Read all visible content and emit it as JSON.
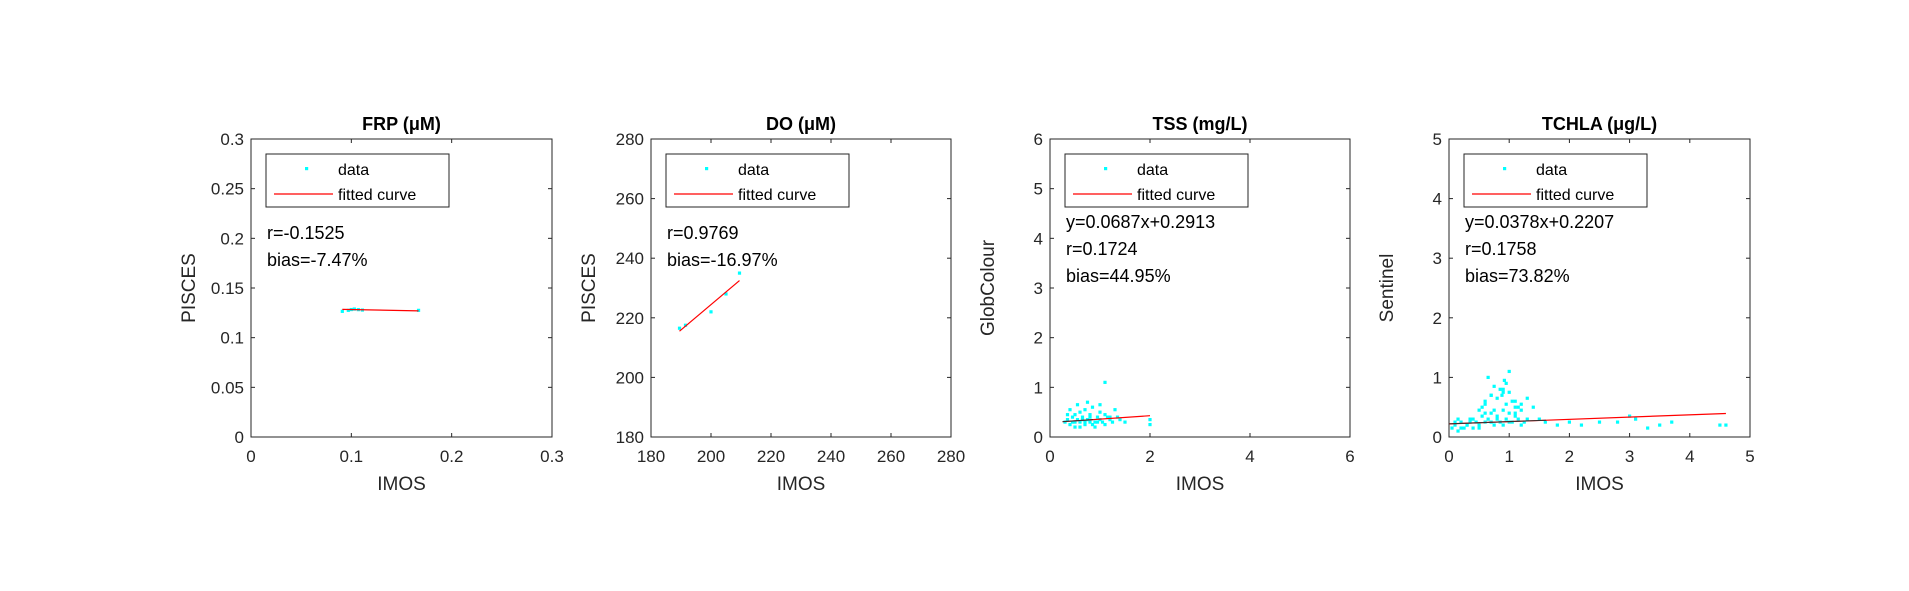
{
  "chart_data": [
    {
      "type": "scatter",
      "title": "FRP (μM)",
      "xlabel": "IMOS",
      "ylabel": "PISCES",
      "xlim": [
        0,
        0.3
      ],
      "ylim": [
        0,
        0.3
      ],
      "xticks": [
        0,
        0.1,
        0.2,
        0.3
      ],
      "xtick_labels": [
        "0",
        "0.1",
        "0.2",
        "0.3"
      ],
      "yticks": [
        0,
        0.05,
        0.1,
        0.15,
        0.2,
        0.25,
        0.3
      ],
      "ytick_labels": [
        "0",
        "0.05",
        "0.1",
        "0.15",
        "0.2",
        "0.25",
        "0.3"
      ],
      "legend": {
        "position": "top-left",
        "entries": [
          "data",
          "fitted curve"
        ]
      },
      "annotations": [
        "r=-0.1525",
        "bias=-7.47%"
      ],
      "series": [
        {
          "name": "data",
          "color": "#00ffff",
          "x": [
            0.091,
            0.097,
            0.1,
            0.103,
            0.107,
            0.111,
            0.167
          ],
          "y": [
            0.1265,
            0.1275,
            0.1283,
            0.1288,
            0.1282,
            0.1278,
            0.1275
          ]
        },
        {
          "name": "fitted curve",
          "color": "#ff0000",
          "fit": "line",
          "x": [
            0.091,
            0.167
          ],
          "y": [
            0.1285,
            0.127
          ]
        }
      ]
    },
    {
      "type": "scatter",
      "title": "DO (μM)",
      "xlabel": "IMOS",
      "ylabel": "PISCES",
      "xlim": [
        180,
        280
      ],
      "ylim": [
        180,
        280
      ],
      "xticks": [
        180,
        200,
        220,
        240,
        260,
        280
      ],
      "xtick_labels": [
        "180",
        "200",
        "220",
        "240",
        "260",
        "280"
      ],
      "yticks": [
        180,
        200,
        220,
        240,
        260,
        280
      ],
      "ytick_labels": [
        "180",
        "200",
        "220",
        "240",
        "260",
        "280"
      ],
      "legend": {
        "position": "top-left",
        "entries": [
          "data",
          "fitted curve"
        ]
      },
      "annotations": [
        "r=0.9769",
        "bias=-16.97%"
      ],
      "series": [
        {
          "name": "data",
          "color": "#00ffff",
          "x": [
            189.5,
            191.5,
            200,
            205,
            209.5
          ],
          "y": [
            216.5,
            217.5,
            222,
            228,
            235
          ]
        },
        {
          "name": "fitted curve",
          "color": "#ff0000",
          "fit": "line",
          "x": [
            189.5,
            209.5
          ],
          "y": [
            215.5,
            232.5
          ]
        }
      ]
    },
    {
      "type": "scatter",
      "title": "TSS (mg/L)",
      "xlabel": "IMOS",
      "ylabel": "GlobColour",
      "xlim": [
        0,
        6
      ],
      "ylim": [
        0,
        6
      ],
      "xticks": [
        0,
        2,
        4,
        6
      ],
      "xtick_labels": [
        "0",
        "2",
        "4",
        "6"
      ],
      "yticks": [
        0,
        1,
        2,
        3,
        4,
        5,
        6
      ],
      "ytick_labels": [
        "0",
        "1",
        "2",
        "3",
        "4",
        "5",
        "6"
      ],
      "legend": {
        "position": "top-left",
        "entries": [
          "data",
          "fitted curve"
        ]
      },
      "annotations": [
        "y=0.0687x+0.2913",
        "r=0.1724",
        "bias=44.95%"
      ],
      "series": [
        {
          "name": "data",
          "color": "#00ffff",
          "x": [
            0.3,
            0.35,
            0.4,
            0.45,
            0.5,
            0.5,
            0.55,
            0.6,
            0.6,
            0.65,
            0.7,
            0.7,
            0.75,
            0.8,
            0.8,
            0.85,
            0.9,
            0.95,
            1.0,
            1.0,
            1.05,
            1.1,
            1.1,
            1.15,
            1.2,
            1.25,
            1.3,
            1.35,
            1.4,
            1.5,
            0.4,
            0.55,
            0.65,
            0.75,
            0.85,
            0.95,
            1.0,
            1.2,
            2.0,
            2.0,
            0.5,
            0.7,
            0.9,
            1.1,
            0.6,
            0.8,
            0.45,
            0.35
          ],
          "y": [
            0.3,
            0.35,
            0.25,
            0.4,
            0.3,
            0.45,
            0.35,
            0.3,
            0.5,
            0.4,
            0.3,
            0.55,
            0.35,
            0.3,
            0.45,
            0.6,
            0.3,
            0.4,
            0.35,
            0.5,
            0.3,
            0.45,
            1.1,
            0.4,
            0.35,
            0.3,
            0.55,
            0.4,
            0.35,
            0.3,
            0.55,
            0.65,
            0.35,
            0.7,
            0.25,
            0.3,
            0.65,
            0.4,
            0.35,
            0.25,
            0.2,
            0.25,
            0.2,
            0.25,
            0.2,
            0.4,
            0.3,
            0.45
          ]
        },
        {
          "name": "fitted curve",
          "color": "#ff0000",
          "fit": "line",
          "x": [
            0.25,
            2.0
          ],
          "y": [
            0.3085,
            0.4287
          ]
        }
      ]
    },
    {
      "type": "scatter",
      "title": "TCHLA (μg/L)",
      "xlabel": "IMOS",
      "ylabel": "Sentinel",
      "xlim": [
        0,
        5
      ],
      "ylim": [
        0,
        5
      ],
      "xticks": [
        0,
        1,
        2,
        3,
        4,
        5
      ],
      "xtick_labels": [
        "0",
        "1",
        "2",
        "3",
        "4",
        "5"
      ],
      "yticks": [
        0,
        1,
        2,
        3,
        4,
        5
      ],
      "ytick_labels": [
        "0",
        "1",
        "2",
        "3",
        "4",
        "5"
      ],
      "legend": {
        "position": "top-left",
        "entries": [
          "data",
          "fitted curve"
        ]
      },
      "annotations": [
        "y=0.0378x+0.2207",
        "r=0.1758",
        "bias=73.82%"
      ],
      "series": [
        {
          "name": "data",
          "color": "#00ffff",
          "x": [
            0.05,
            0.1,
            0.15,
            0.2,
            0.25,
            0.3,
            0.35,
            0.4,
            0.45,
            0.5,
            0.55,
            0.6,
            0.65,
            0.7,
            0.75,
            0.8,
            0.85,
            0.9,
            0.95,
            1.0,
            1.05,
            1.1,
            1.15,
            1.2,
            1.25,
            1.3,
            0.1,
            0.2,
            0.3,
            0.4,
            0.5,
            0.6,
            0.7,
            0.8,
            0.9,
            1.0,
            1.1,
            1.2,
            0.15,
            0.35,
            0.55,
            0.75,
            0.95,
            1.15,
            0.6,
            0.7,
            0.8,
            0.85,
            0.9,
            0.95,
            1.0,
            1.05,
            0.65,
            0.75,
            0.88,
            0.92,
            1.0,
            1.1,
            1.2,
            1.3,
            1.4,
            1.5,
            1.6,
            1.8,
            2.0,
            2.2,
            2.5,
            2.8,
            3.0,
            3.1,
            3.3,
            3.5,
            3.7,
            4.5,
            4.6,
            0.9,
            0.6,
            0.5,
            0.7,
            1.1
          ],
          "y": [
            0.15,
            0.2,
            0.1,
            0.25,
            0.15,
            0.2,
            0.3,
            0.15,
            0.25,
            0.2,
            0.35,
            0.25,
            0.3,
            0.4,
            0.2,
            0.35,
            0.25,
            0.45,
            0.3,
            0.4,
            0.25,
            0.35,
            0.3,
            0.45,
            0.25,
            0.3,
            0.25,
            0.15,
            0.2,
            0.3,
            0.15,
            0.4,
            0.25,
            0.3,
            0.2,
            0.25,
            0.4,
            0.2,
            0.3,
            0.25,
            0.5,
            0.45,
            0.55,
            0.5,
            0.6,
            0.7,
            0.65,
            0.8,
            0.75,
            0.9,
            1.1,
            0.6,
            1.0,
            0.85,
            0.7,
            0.95,
            0.75,
            0.6,
            0.55,
            0.65,
            0.5,
            0.3,
            0.25,
            0.2,
            0.25,
            0.2,
            0.25,
            0.25,
            0.35,
            0.3,
            0.15,
            0.2,
            0.25,
            0.2,
            0.2,
            0.8,
            0.55,
            0.45,
            0.7,
            0.5
          ]
        },
        {
          "name": "fitted curve",
          "color": "#ff0000",
          "fit": "line",
          "x": [
            0.0,
            4.6
          ],
          "y": [
            0.2207,
            0.3946
          ]
        }
      ]
    }
  ]
}
